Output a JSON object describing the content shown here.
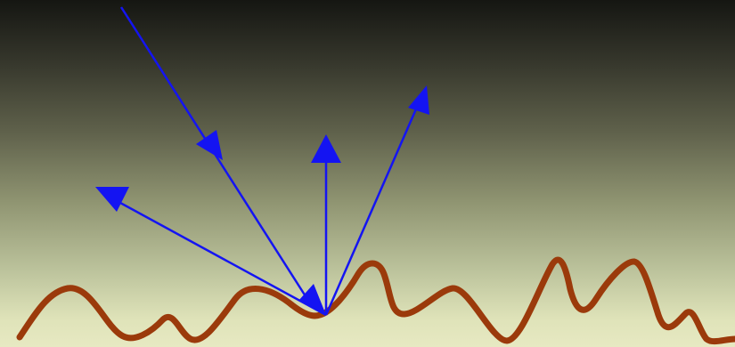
{
  "diagram": {
    "type": "diffuse-reflection",
    "surface_color": "#9b3a0b",
    "ray_color": "#1414f2",
    "background_top": "#151612",
    "background_bottom": "#e7e9c2"
  }
}
